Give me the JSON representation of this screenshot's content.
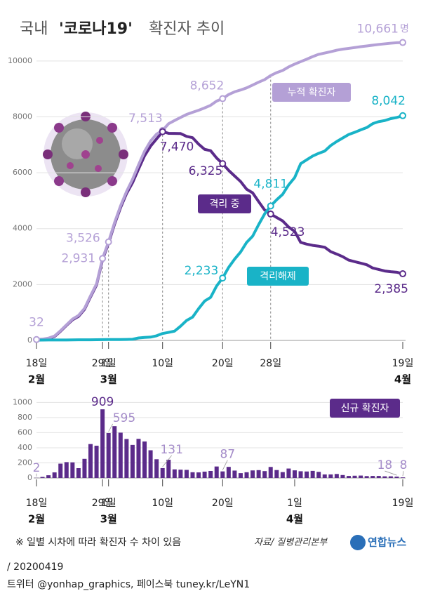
{
  "chart_data": [
    {
      "type": "line",
      "title": [
        "국내",
        "'코로나19'",
        "확진자 추이"
      ],
      "unit": "명",
      "categories": [
        "18일",
        null,
        null,
        null,
        null,
        null,
        null,
        null,
        null,
        null,
        null,
        "29일",
        "1일",
        null,
        null,
        null,
        null,
        null,
        null,
        null,
        null,
        "10일",
        null,
        null,
        null,
        null,
        null,
        null,
        null,
        null,
        null,
        "20일",
        null,
        null,
        null,
        null,
        null,
        null,
        null,
        "28일",
        null,
        null,
        null,
        null,
        null,
        null,
        null,
        null,
        null,
        null,
        null,
        null,
        null,
        null,
        null,
        null,
        null,
        null,
        null,
        null,
        null,
        "19일"
      ],
      "months": [
        {
          "label": "2월",
          "category": 0
        },
        {
          "label": "3월",
          "category": 12
        },
        {
          "label": "4월",
          "category": 61
        }
      ],
      "series": [
        {
          "name": "누적 확진자",
          "color": "#b4a0d6",
          "values": [
            32,
            46,
            82,
            156,
            346,
            556,
            763,
            893,
            1146,
            1595,
            2022,
            2931,
            3526,
            4212,
            4812,
            5328,
            5766,
            6284,
            6767,
            7134,
            7382,
            7513,
            7755,
            7869,
            7979,
            8086,
            8162,
            8236,
            8320,
            8413,
            8565,
            8652,
            8799,
            8897,
            8961,
            9037,
            9137,
            9241,
            9332,
            9478,
            9583,
            9661,
            9786,
            9887,
            9976,
            10062,
            10156,
            10237,
            10284,
            10331,
            10384,
            10423,
            10450,
            10480,
            10512,
            10537,
            10564,
            10591,
            10613,
            10635,
            10653,
            10661
          ],
          "value_labels": [
            "32",
            null,
            null,
            null,
            null,
            null,
            null,
            null,
            null,
            null,
            null,
            "2,931",
            "3,526",
            null,
            null,
            null,
            null,
            null,
            null,
            null,
            null,
            "7,513",
            null,
            null,
            null,
            null,
            null,
            null,
            null,
            null,
            null,
            "8,652",
            null,
            null,
            null,
            null,
            null,
            null,
            null,
            null,
            null,
            null,
            null,
            null,
            null,
            null,
            null,
            null,
            null,
            null,
            null,
            null,
            null,
            null,
            null,
            null,
            null,
            null,
            null,
            null,
            null,
            "10,661"
          ]
        },
        {
          "name": "격리 중",
          "color": "#5b2b8a",
          "values": [
            22,
            34,
            66,
            139,
            328,
            537,
            738,
            859,
            1112,
            1558,
            1982,
            2888,
            3479,
            4159,
            4750,
            5255,
            5643,
            6134,
            6606,
            6950,
            7212,
            7470,
            7410,
            7407,
            7402,
            7300,
            7253,
            7024,
            6838,
            6789,
            6527,
            6325,
            6085,
            5884,
            5684,
            5410,
            5281,
            4966,
            4665,
            4523,
            4398,
            4275,
            4057,
            3903,
            3507,
            3445,
            3401,
            3373,
            3333,
            3176,
            3090,
            2997,
            2873,
            2819,
            2764,
            2708,
            2591,
            2537,
            2484,
            2459,
            2440,
            2385
          ],
          "value_labels": [
            null,
            null,
            null,
            null,
            null,
            null,
            null,
            null,
            null,
            null,
            null,
            null,
            null,
            null,
            null,
            null,
            null,
            null,
            null,
            null,
            null,
            "7,470",
            null,
            null,
            null,
            null,
            null,
            null,
            null,
            null,
            null,
            "6,325",
            null,
            null,
            null,
            null,
            null,
            null,
            null,
            "4,523",
            null,
            null,
            null,
            null,
            null,
            null,
            null,
            null,
            null,
            null,
            null,
            null,
            null,
            null,
            null,
            null,
            null,
            null,
            null,
            null,
            null,
            "2,385"
          ]
        },
        {
          "name": "격리해제",
          "color": "#19b3c7",
          "values": [
            10,
            12,
            16,
            16,
            16,
            17,
            18,
            22,
            22,
            22,
            24,
            27,
            30,
            30,
            30,
            34,
            41,
            88,
            108,
            118,
            166,
            247,
            288,
            333,
            510,
            714,
            834,
            1137,
            1407,
            1540,
            1947,
            2233,
            2612,
            2909,
            3166,
            3507,
            3730,
            4144,
            4528,
            4811,
            5033,
            5228,
            5567,
            5828,
            6325,
            6463,
            6598,
            6694,
            6776,
            6973,
            7117,
            7243,
            7368,
            7447,
            7534,
            7616,
            7757,
            7829,
            7868,
            7937,
            7977,
            8042
          ],
          "value_labels": [
            null,
            null,
            null,
            null,
            null,
            null,
            null,
            null,
            null,
            null,
            null,
            null,
            null,
            null,
            null,
            null,
            null,
            null,
            null,
            null,
            null,
            null,
            null,
            null,
            null,
            null,
            null,
            null,
            null,
            null,
            null,
            "2,233",
            null,
            null,
            null,
            null,
            null,
            null,
            null,
            "4,811",
            null,
            null,
            null,
            null,
            null,
            null,
            null,
            null,
            null,
            null,
            null,
            null,
            null,
            null,
            null,
            null,
            null,
            null,
            null,
            null,
            null,
            "8,042"
          ]
        }
      ],
      "ylim": [
        0,
        10800
      ],
      "yticks": [
        0,
        2000,
        4000,
        6000,
        8000,
        10000
      ],
      "grid": true
    },
    {
      "type": "bar",
      "title": "신규 확진자",
      "color": "#5b2b8a",
      "categories": [
        "18일",
        null,
        null,
        null,
        null,
        null,
        null,
        null,
        null,
        null,
        null,
        "29일",
        "1일",
        null,
        null,
        null,
        null,
        null,
        null,
        null,
        null,
        "10일",
        null,
        null,
        null,
        null,
        null,
        null,
        null,
        null,
        null,
        "20일",
        null,
        null,
        null,
        null,
        null,
        null,
        null,
        null,
        null,
        null,
        null,
        "1일",
        null,
        null,
        null,
        null,
        null,
        null,
        null,
        null,
        null,
        null,
        null,
        null,
        null,
        null,
        null,
        null,
        null,
        "19일"
      ],
      "months": [
        {
          "label": "2월",
          "category": 0
        },
        {
          "label": "3월",
          "category": 12
        },
        {
          "label": "4월",
          "category": 43
        }
      ],
      "values": [
        2,
        14,
        36,
        74,
        190,
        210,
        207,
        130,
        253,
        449,
        427,
        909,
        595,
        686,
        600,
        516,
        438,
        518,
        483,
        367,
        248,
        131,
        242,
        114,
        110,
        107,
        76,
        74,
        84,
        93,
        152,
        87,
        147,
        98,
        64,
        76,
        100,
        104,
        91,
        146,
        105,
        78,
        125,
        101,
        89,
        86,
        94,
        81,
        47,
        47,
        53,
        39,
        27,
        30,
        32,
        25,
        27,
        27,
        22,
        22,
        18,
        8
      ],
      "value_labels": [
        "2",
        null,
        null,
        null,
        null,
        null,
        null,
        null,
        null,
        null,
        null,
        "909",
        "595",
        null,
        null,
        null,
        null,
        null,
        null,
        null,
        null,
        "131",
        null,
        null,
        null,
        null,
        null,
        null,
        null,
        null,
        null,
        "87",
        null,
        null,
        null,
        null,
        null,
        null,
        null,
        null,
        null,
        null,
        null,
        null,
        null,
        null,
        null,
        null,
        null,
        null,
        null,
        null,
        null,
        null,
        null,
        null,
        null,
        null,
        null,
        null,
        "18",
        "8"
      ],
      "ylim": [
        0,
        1050
      ],
      "yticks": [
        0,
        200,
        400,
        600,
        800,
        1000
      ],
      "grid": true
    }
  ],
  "footer": {
    "note": "※ 일별 시차에 따라 확진자 수 차이 있음",
    "source": "자료/ 질병관리본부",
    "logo": "연합뉴스",
    "date": "/ 20200419",
    "credit": "트위터 @yonhap_graphics, 페이스북 tuney.kr/LeYN1"
  }
}
